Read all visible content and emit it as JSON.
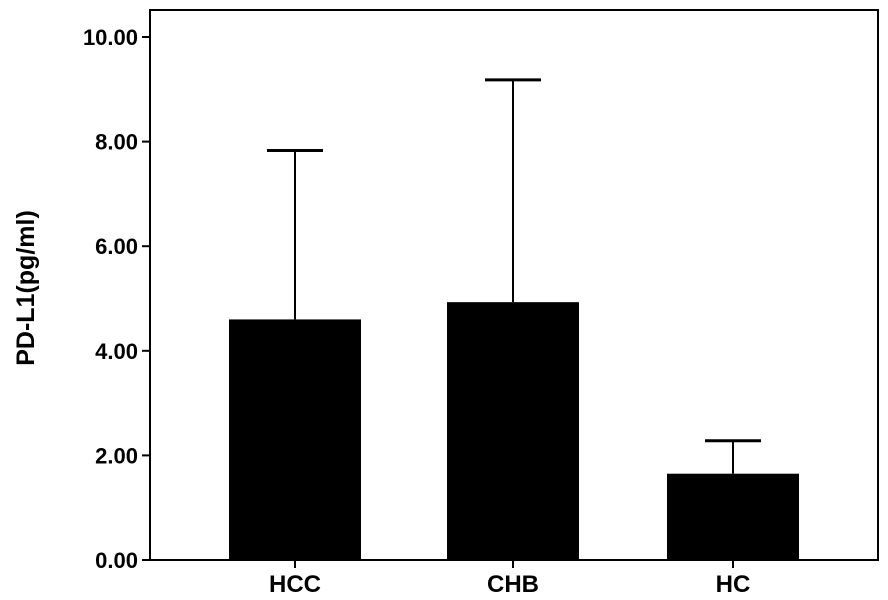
{
  "chart_data": {
    "type": "bar",
    "title": "",
    "xlabel": "",
    "ylabel": "PD-L1(pg/ml)",
    "categories": [
      "HCC",
      "CHB",
      "HC"
    ],
    "values": [
      4.6,
      4.93,
      1.65
    ],
    "error_upper": [
      7.83,
      9.18,
      2.28
    ],
    "ylim": [
      0,
      10
    ],
    "yticks": [
      0,
      2,
      4,
      6,
      8,
      10
    ],
    "ytick_labels": [
      "0.00",
      "2.00",
      "4.00",
      "6.00",
      "8.00",
      "10.00"
    ],
    "grid": false,
    "legend": "none",
    "bar_color": "#000000"
  }
}
